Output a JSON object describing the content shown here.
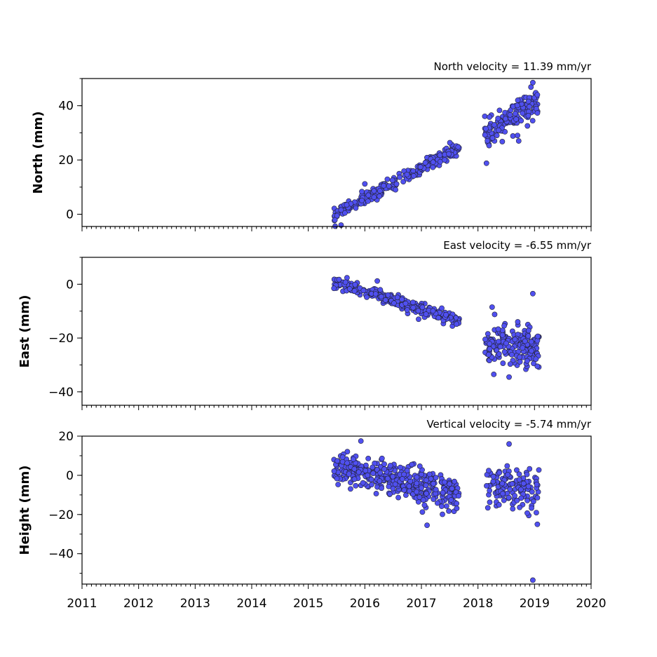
{
  "colors": {
    "marker_fill": "#5050f0",
    "marker_edge": "#222233",
    "axes": "#000000",
    "background": "#ffffff"
  },
  "chart_data": [
    {
      "type": "scatter",
      "title": "North velocity = 11.39 mm/yr",
      "ylabel": "North (mm)",
      "xlim": [
        2011,
        2020
      ],
      "ylim": [
        -4.5,
        50
      ],
      "x_ticks": [
        2011,
        2012,
        2013,
        2014,
        2015,
        2016,
        2017,
        2018,
        2019,
        2020
      ],
      "x_tick_labels": [
        "",
        "",
        "",
        "",
        "",
        "",
        "",
        "",
        "",
        ""
      ],
      "y_ticks": [
        0,
        20,
        40
      ],
      "y_tick_labels": [
        "0",
        "20",
        "40"
      ],
      "segments": [
        {
          "x_start": 2015.45,
          "x_end": 2017.67,
          "y_start": -0.5,
          "y_end": 24.8,
          "scatter": 1.2,
          "density": 95
        },
        {
          "x_start": 2018.12,
          "x_end": 2019.08,
          "y_start": 29.0,
          "y_end": 41.5,
          "scatter": 2.6,
          "density": 130
        }
      ],
      "outliers": [
        [
          2015.58,
          -4.0
        ],
        [
          2016.0,
          11.2
        ],
        [
          2018.15,
          18.8
        ],
        [
          2018.97,
          48.5
        ],
        [
          2018.72,
          27.0
        ],
        [
          2019.05,
          44.0
        ]
      ]
    },
    {
      "type": "scatter",
      "title": "East velocity = -6.55 mm/yr",
      "ylabel": "East (mm)",
      "xlim": [
        2011,
        2020
      ],
      "ylim": [
        -45,
        10
      ],
      "x_ticks": [
        2011,
        2012,
        2013,
        2014,
        2015,
        2016,
        2017,
        2018,
        2019,
        2020
      ],
      "x_tick_labels": [
        "",
        "",
        "",
        "",
        "",
        "",
        "",
        "",
        "",
        ""
      ],
      "y_ticks": [
        0,
        -20,
        -40
      ],
      "y_tick_labels": [
        "0",
        "−20",
        "−40"
      ],
      "segments": [
        {
          "x_start": 2015.45,
          "x_end": 2017.67,
          "y_start": 0.5,
          "y_end": -13.5,
          "scatter": 1.1,
          "density": 95
        },
        {
          "x_start": 2018.12,
          "x_end": 2019.08,
          "y_start": -22.0,
          "y_end": -23.5,
          "scatter": 3.5,
          "density": 160
        }
      ],
      "outliers": [
        [
          2016.22,
          1.2
        ],
        [
          2016.95,
          -13.0
        ],
        [
          2018.25,
          -8.5
        ],
        [
          2018.97,
          -3.5
        ],
        [
          2018.28,
          -33.5
        ],
        [
          2018.55,
          -34.5
        ],
        [
          2019.05,
          -30.5
        ]
      ]
    },
    {
      "type": "scatter",
      "title": "Vertical velocity = -5.74 mm/yr",
      "ylabel": "Height (mm)",
      "xlim": [
        2011,
        2020
      ],
      "ylim": [
        -55.5,
        20
      ],
      "x_ticks": [
        2011,
        2012,
        2013,
        2014,
        2015,
        2016,
        2017,
        2018,
        2019,
        2020
      ],
      "x_tick_labels": [
        "2011",
        "2012",
        "2013",
        "2014",
        "2015",
        "2016",
        "2017",
        "2018",
        "2019",
        "2020"
      ],
      "y_ticks": [
        20,
        0,
        -20,
        -40
      ],
      "y_tick_labels": [
        "20",
        "0",
        "−20",
        "−40"
      ],
      "segments": [
        {
          "x_start": 2015.45,
          "x_end": 2017.67,
          "y_start": 4.0,
          "y_end": -10.0,
          "scatter": 4.5,
          "density": 140
        },
        {
          "x_start": 2018.15,
          "x_end": 2019.08,
          "y_start": -5.0,
          "y_end": -8.0,
          "scatter": 5.0,
          "density": 120
        }
      ],
      "outliers": [
        [
          2015.93,
          17.5
        ],
        [
          2018.55,
          16.0
        ],
        [
          2018.97,
          -53.5
        ],
        [
          2019.05,
          -25.0
        ],
        [
          2017.1,
          -25.5
        ]
      ]
    }
  ]
}
